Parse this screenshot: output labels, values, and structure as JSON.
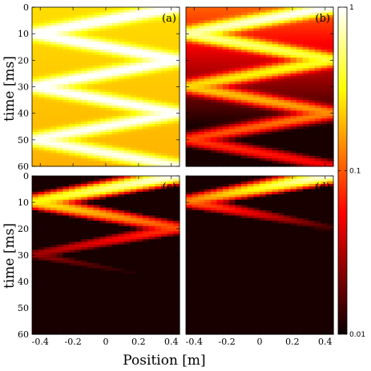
{
  "chart_data": {
    "type": "heatmap",
    "layout": "2x2 panels with shared colorbar",
    "xlabel": "Position [m]",
    "ylabel": "time [ms]",
    "xlim": [
      -0.45,
      0.45
    ],
    "ylim": [
      0,
      60
    ],
    "y_inverted": true,
    "x_ticks": [
      "-0.4",
      "-0.2",
      "0",
      "0.2",
      "0.4"
    ],
    "x_tick_values": [
      -0.4,
      -0.2,
      0,
      0.2,
      0.4
    ],
    "y_ticks": [
      "0",
      "10",
      "20",
      "30",
      "40",
      "50",
      "60"
    ],
    "y_tick_values": [
      0,
      10,
      20,
      30,
      40,
      50,
      60
    ],
    "colormap": "hot",
    "color_scale": "log",
    "colorbar": {
      "range": [
        0.01,
        1
      ],
      "ticks": [
        "1",
        "0.1",
        "0.01"
      ],
      "tick_values": [
        1,
        0.1,
        0.01
      ]
    },
    "bounce_period_ms": 20,
    "panels": [
      {
        "label": "(a)",
        "decay_per_bounce": 0.95,
        "background": 0.28
      },
      {
        "label": "(b)",
        "decay_per_bounce": 0.6,
        "background": 0.12
      },
      {
        "label": "(c)",
        "decay_per_bounce": 0.3,
        "background": 0.01
      },
      {
        "label": "(d)",
        "decay_per_bounce": 0.12,
        "background": 0.01
      }
    ]
  }
}
